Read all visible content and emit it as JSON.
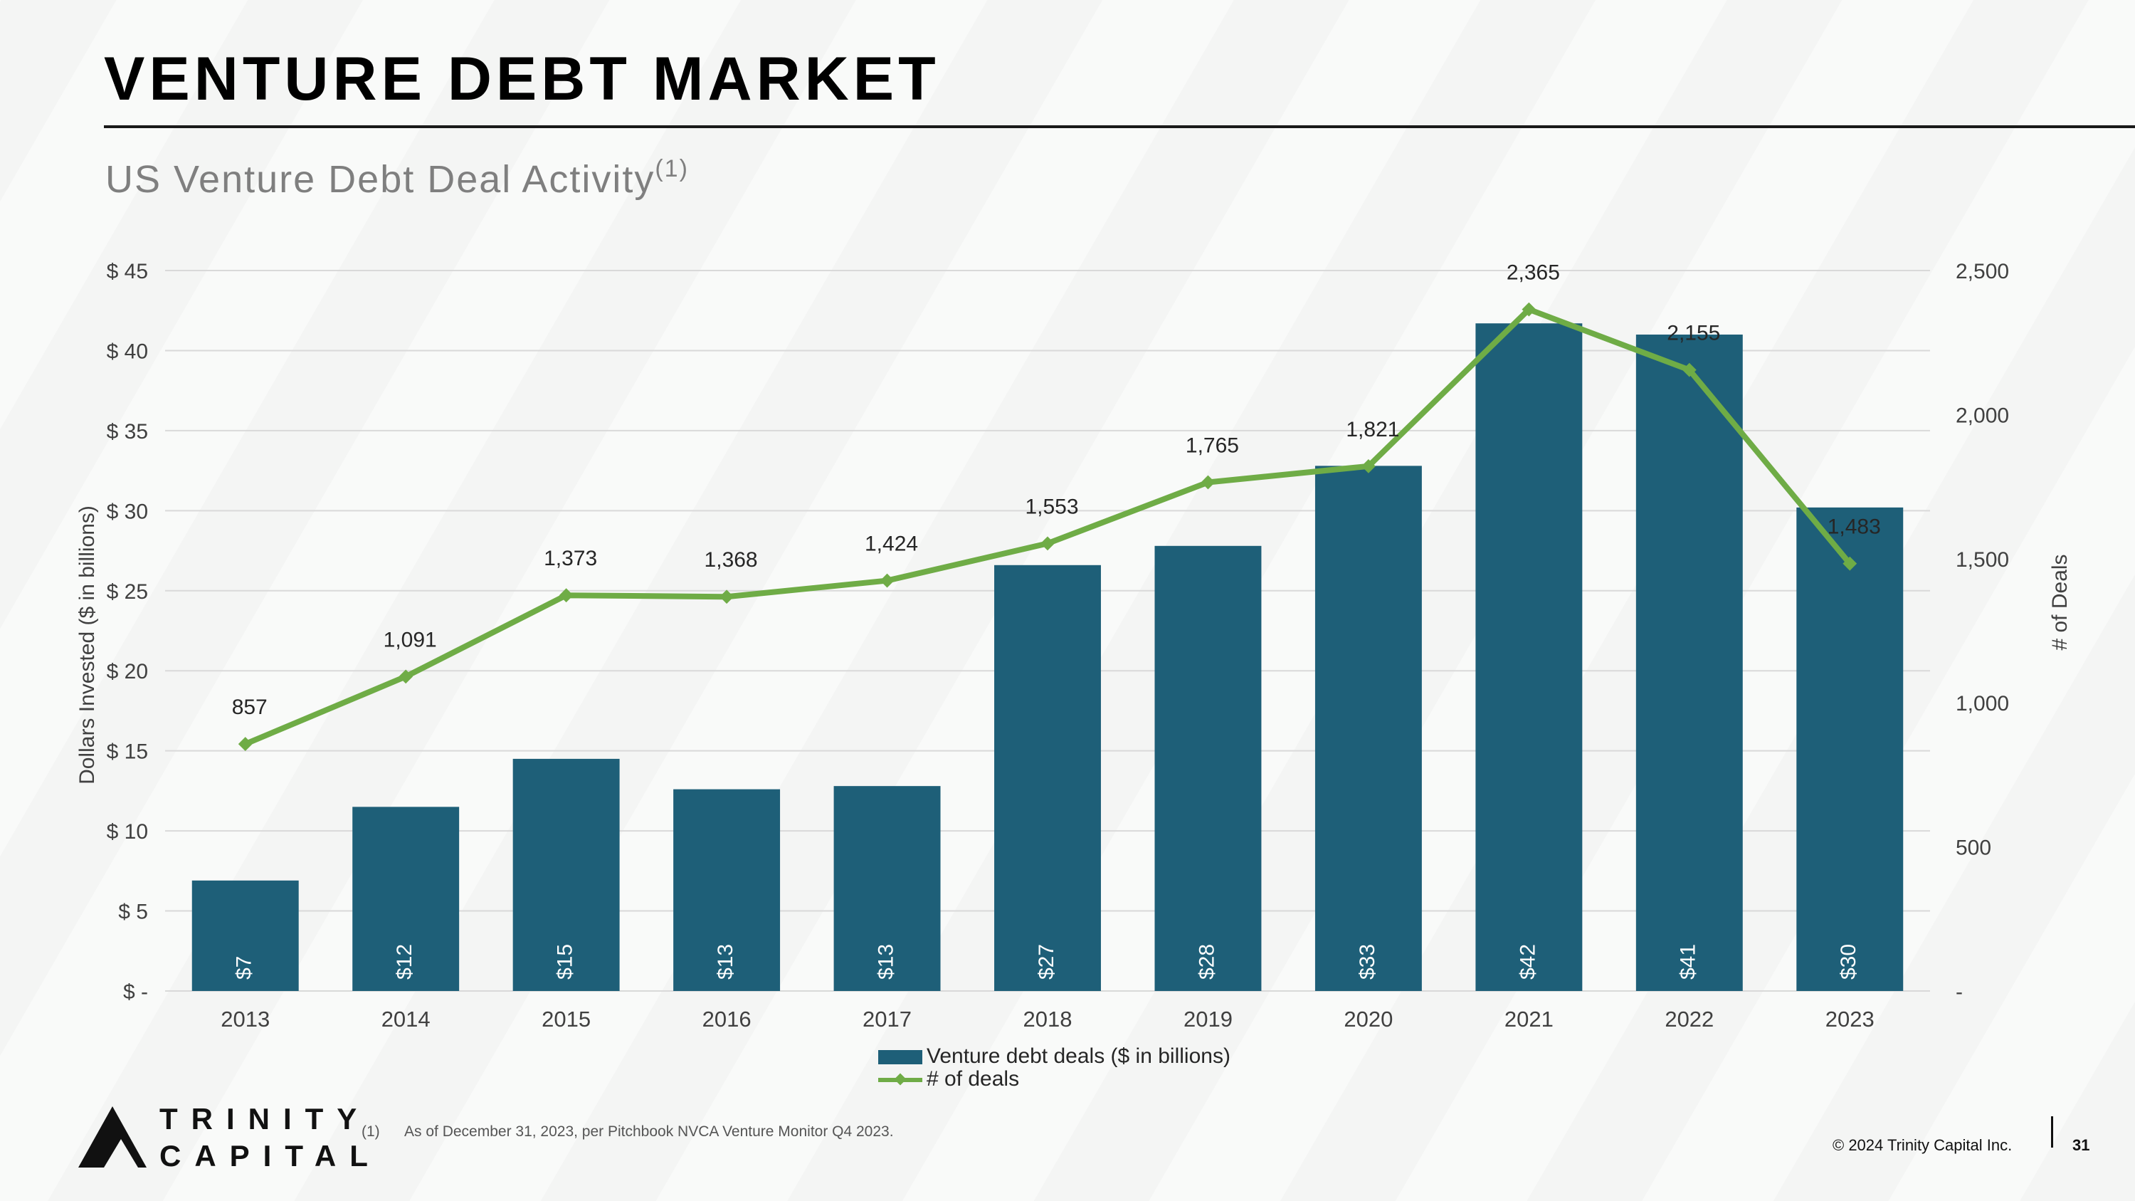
{
  "header": {
    "title": "VENTURE DEBT MARKET",
    "subtitle": "US Venture Debt Deal Activity",
    "subtitle_note": "(1)"
  },
  "chart_data": {
    "type": "bar",
    "categories": [
      "2013",
      "2014",
      "2015",
      "2016",
      "2017",
      "2018",
      "2019",
      "2020",
      "2021",
      "2022",
      "2023"
    ],
    "series": [
      {
        "name": "Venture debt deals ($ in billions)",
        "type": "bar",
        "axis": "left",
        "values": [
          6.9,
          11.5,
          14.5,
          12.6,
          12.8,
          26.6,
          27.8,
          32.8,
          41.7,
          41.0,
          30.2
        ],
        "labels": [
          "$7",
          "$12",
          "$15",
          "$13",
          "$13",
          "$27",
          "$28",
          "$33",
          "$42",
          "$41",
          "$30"
        ]
      },
      {
        "name": "# of deals",
        "type": "line",
        "axis": "right",
        "values": [
          857,
          1091,
          1373,
          1368,
          1424,
          1553,
          1765,
          1821,
          2365,
          2155,
          1483
        ],
        "labels": [
          "857",
          "1,091",
          "1,373",
          "1,368",
          "1,424",
          "1,553",
          "1,765",
          "1,821",
          "2,365",
          "2,155",
          "1,483"
        ]
      }
    ],
    "ylabel": "Dollars Invested ($ in billions)",
    "y2label": "# of Deals",
    "ylim": [
      0,
      45
    ],
    "y2lim": [
      0,
      2500
    ],
    "yticks": [
      0,
      5,
      10,
      15,
      20,
      25,
      30,
      35,
      40,
      45
    ],
    "ytick_labels": [
      "$ -",
      "$ 5",
      "$ 10",
      "$ 15",
      "$ 20",
      "$ 25",
      "$ 30",
      "$ 35",
      "$ 40",
      "$ 45"
    ],
    "y2ticks": [
      0,
      500,
      1000,
      1500,
      2000,
      2500
    ],
    "y2tick_labels": [
      "-",
      "500",
      "1,000",
      "1,500",
      "2,000",
      "2,500"
    ],
    "grid": true,
    "legend_position": "bottom",
    "colors": {
      "bar": "#1e5f78",
      "line": "#6fac46"
    }
  },
  "legend": {
    "bar_label": "Venture debt deals ($ in billions)",
    "line_label": "# of deals"
  },
  "footer": {
    "footnote_number": "(1)",
    "footnote_text": "As of December 31, 2023, per Pitchbook NVCA Venture Monitor Q4 2023.",
    "copyright": "© 2024 Trinity Capital Inc.",
    "page_number": "31",
    "logo_line1": "TRINITY",
    "logo_line2": "CAPITAL"
  }
}
